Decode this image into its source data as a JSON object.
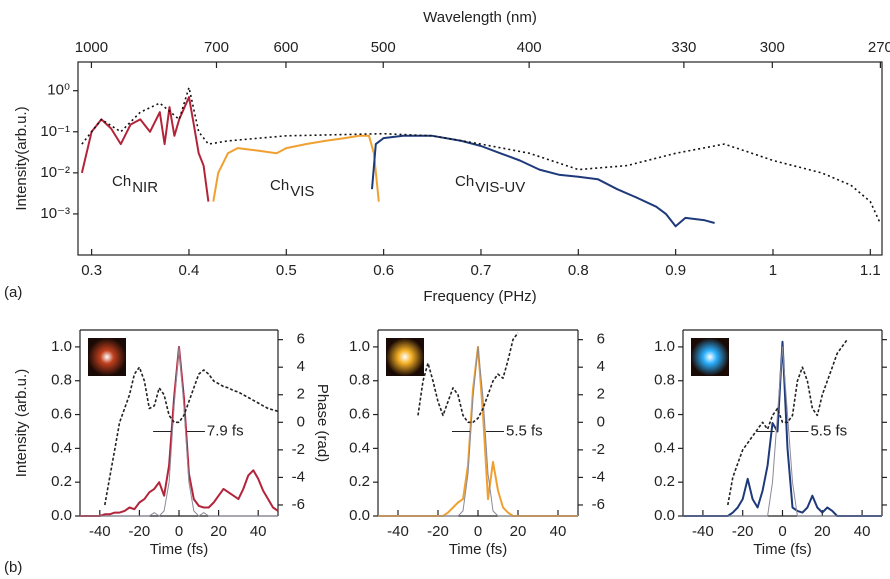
{
  "chart_data": [
    {
      "type": "line",
      "xlabel": "Frequency (PHz)",
      "ylabel": "Intensity(arb.u.)",
      "x2label": "Wavelength (nm)",
      "panel_label": "(a)",
      "log_y": true,
      "xlim": [
        0.286,
        1.112
      ],
      "xticks": [
        0.3,
        0.4,
        0.5,
        0.6,
        0.7,
        0.8,
        0.9,
        1,
        1.1
      ],
      "x2ticks": [
        1000,
        700,
        600,
        500,
        400,
        330,
        300,
        270
      ],
      "ylim": [
        0.0001,
        5
      ],
      "yticks": [
        {
          "value": 0.001,
          "label": "10⁻³"
        },
        {
          "value": 0.01,
          "label": "10⁻²"
        },
        {
          "value": 0.1,
          "label": "10⁻¹"
        },
        {
          "value": 1,
          "label": "10⁰"
        }
      ],
      "series": [
        {
          "name": "Ch",
          "name_sub": "NIR",
          "color": "#b3243a",
          "x": [
            0.29,
            0.3,
            0.31,
            0.32,
            0.33,
            0.34,
            0.35,
            0.36,
            0.37,
            0.375,
            0.38,
            0.385,
            0.39,
            0.4,
            0.405,
            0.41,
            0.415,
            0.42
          ],
          "values": [
            0.01,
            0.1,
            0.2,
            0.12,
            0.05,
            0.15,
            0.2,
            0.1,
            0.3,
            0.05,
            0.4,
            0.08,
            0.2,
            0.7,
            0.15,
            0.03,
            0.015,
            0.002
          ]
        },
        {
          "name": "Ch",
          "name_sub": "VIS",
          "color": "#f0a030",
          "x": [
            0.425,
            0.43,
            0.44,
            0.45,
            0.47,
            0.49,
            0.5,
            0.52,
            0.54,
            0.56,
            0.575,
            0.585,
            0.59,
            0.595
          ],
          "values": [
            0.002,
            0.01,
            0.03,
            0.04,
            0.035,
            0.03,
            0.04,
            0.05,
            0.06,
            0.07,
            0.08,
            0.08,
            0.03,
            0.002
          ]
        },
        {
          "name": "Ch",
          "name_sub": "VIS-UV",
          "color": "#1f3a7a",
          "x": [
            0.588,
            0.592,
            0.6,
            0.62,
            0.65,
            0.68,
            0.7,
            0.72,
            0.74,
            0.76,
            0.78,
            0.8,
            0.82,
            0.84,
            0.86,
            0.88,
            0.89,
            0.9,
            0.91,
            0.93,
            0.94
          ],
          "values": [
            0.004,
            0.05,
            0.07,
            0.08,
            0.08,
            0.06,
            0.045,
            0.03,
            0.02,
            0.012,
            0.009,
            0.008,
            0.007,
            0.004,
            0.0025,
            0.0015,
            0.001,
            0.0005,
            0.0008,
            0.0007,
            0.0006
          ]
        },
        {
          "color": "#111",
          "style": "dotted",
          "x": [
            0.29,
            0.31,
            0.33,
            0.35,
            0.37,
            0.39,
            0.4,
            0.41,
            0.42,
            0.44,
            0.5,
            0.6,
            0.65,
            0.7,
            0.75,
            0.8,
            0.85,
            0.9,
            0.95,
            0.97,
            1.0,
            1.05,
            1.08,
            1.1,
            1.11
          ],
          "values": [
            0.05,
            0.2,
            0.1,
            0.3,
            0.5,
            0.2,
            1.2,
            0.1,
            0.05,
            0.06,
            0.08,
            0.09,
            0.08,
            0.05,
            0.03,
            0.012,
            0.015,
            0.03,
            0.05,
            0.035,
            0.02,
            0.01,
            0.005,
            0.002,
            0.0006
          ]
        }
      ]
    },
    {
      "type": "line",
      "xlabel": "Time (fs)",
      "ylabel": "Intensity (arb.u.)",
      "y2label": "Phase (rad)",
      "panel_label": "(b)",
      "annotation": "7.9 fs",
      "inset_color": "#c0401e",
      "y2_color": "#2e9a1e",
      "xlim": [
        -50,
        50
      ],
      "xticks": [
        -40,
        -20,
        0,
        20,
        40
      ],
      "ylim": [
        0,
        1.1
      ],
      "yticks": [
        {
          "value": 0,
          "label": "0.0"
        },
        0.2,
        0.4,
        0.6,
        0.8,
        {
          "value": 1,
          "label": "1.0"
        }
      ],
      "y2lim": [
        -6.8,
        6.7
      ],
      "y2ticks": [
        -6,
        -4,
        -2,
        0,
        2,
        4,
        6
      ],
      "x": [
        -50,
        -47.5,
        -45,
        -42.5,
        -40,
        -37.5,
        -35,
        -32.5,
        -30,
        -27.5,
        -25,
        -22.5,
        -20,
        -17.5,
        -15,
        -12.5,
        -10,
        -7.5,
        -5,
        -2.5,
        0,
        2.5,
        5,
        7.5,
        10,
        12.5,
        15,
        17.5,
        20,
        22.5,
        25,
        27.5,
        30,
        32.5,
        35,
        37.5,
        40,
        42.5,
        45,
        47.5,
        50
      ],
      "series": [
        {
          "color": "#b3243a",
          "values": [
            0,
            0,
            0,
            0,
            0,
            0.01,
            0.01,
            0.02,
            0.02,
            0.03,
            0.05,
            0.04,
            0.08,
            0.1,
            0.14,
            0.16,
            0.2,
            0.12,
            0.3,
            0.7,
            1.0,
            0.7,
            0.25,
            0.1,
            0.06,
            0.05,
            0.05,
            0.08,
            0.12,
            0.16,
            0.14,
            0.12,
            0.1,
            0.16,
            0.24,
            0.27,
            0.22,
            0.15,
            0.1,
            0.05,
            0.03
          ]
        },
        {
          "color": "#8a8a9a",
          "values": [
            0,
            0,
            0,
            0,
            0,
            0,
            0,
            0,
            0,
            0,
            0,
            0,
            0,
            0,
            0,
            0.02,
            0,
            0.03,
            0.2,
            0.65,
            1.0,
            0.65,
            0.2,
            0.03,
            0,
            0.02,
            0,
            0,
            0,
            0,
            0,
            0,
            0,
            0,
            0,
            0,
            0,
            0,
            0,
            0,
            0
          ]
        },
        {
          "color": "#222",
          "style": "dashed",
          "axis": "y2",
          "values": [
            null,
            null,
            null,
            null,
            null,
            -6,
            -4,
            -2,
            0,
            1,
            2,
            3.5,
            4,
            3,
            1,
            1.2,
            2.5,
            2,
            0.5,
            0,
            0,
            0.5,
            1.5,
            2.5,
            3.5,
            3.8,
            3.5,
            3,
            2.8,
            2.6,
            2.5,
            2.3,
            2.2,
            2,
            1.8,
            1.6,
            1.4,
            1.2,
            1,
            0.9,
            0.8
          ]
        }
      ]
    },
    {
      "type": "line",
      "xlabel": "Time (fs)",
      "annotation": "5.5 fs",
      "inset_color": "#f5b025",
      "y2_color": "#2e9a1e",
      "xlim": [
        -50,
        50
      ],
      "xticks": [
        -40,
        -20,
        0,
        20,
        40
      ],
      "ylim": [
        0,
        1.1
      ],
      "yticks": [
        {
          "value": 0,
          "label": "0.0"
        },
        0.2,
        0.4,
        0.6,
        0.8,
        {
          "value": 1,
          "label": "1.0"
        }
      ],
      "y2lim": [
        -6.8,
        6.7
      ],
      "y2ticks": [
        -6,
        -4,
        -2,
        0,
        2,
        4,
        6
      ],
      "x": [
        -50,
        -47.5,
        -45,
        -42.5,
        -40,
        -37.5,
        -35,
        -32.5,
        -30,
        -27.5,
        -25,
        -22.5,
        -20,
        -17.5,
        -15,
        -12.5,
        -10,
        -7.5,
        -5,
        -2.5,
        0,
        2.5,
        5,
        7.5,
        10,
        12.5,
        15,
        17.5,
        20,
        22.5,
        25,
        27.5,
        30,
        32.5,
        35,
        37.5,
        40,
        42.5,
        45,
        47.5,
        50
      ],
      "series": [
        {
          "color": "#f0a030",
          "values": [
            0,
            0,
            0,
            0,
            0,
            0,
            0,
            0,
            0,
            0,
            0,
            0,
            0,
            0,
            0.02,
            0.05,
            0.08,
            0.1,
            0.3,
            0.75,
            1.0,
            0.6,
            0.1,
            0.32,
            0.15,
            0.05,
            0.02,
            0,
            0,
            0,
            0,
            0,
            0,
            0,
            0,
            0,
            0,
            0,
            0,
            0,
            0
          ]
        },
        {
          "color": "#8a8a9a",
          "values": [
            0,
            0,
            0,
            0,
            0,
            0,
            0,
            0,
            0,
            0,
            0,
            0,
            0,
            0,
            0,
            0,
            0,
            0.03,
            0.25,
            0.7,
            1.0,
            0.7,
            0.25,
            0.03,
            0,
            0,
            0,
            0,
            0,
            0,
            0,
            0,
            0,
            0,
            0,
            0,
            0,
            0,
            0,
            0,
            0
          ]
        },
        {
          "color": "#222",
          "style": "dashed",
          "axis": "y2",
          "values": [
            null,
            null,
            null,
            null,
            null,
            null,
            null,
            null,
            0.5,
            3,
            4.3,
            3,
            1.5,
            0.5,
            1.5,
            2.5,
            2,
            0.5,
            0,
            0,
            0.3,
            1,
            2,
            3,
            3.5,
            3.2,
            4.5,
            6,
            6.5,
            null,
            null,
            null,
            null,
            null,
            null,
            null,
            null,
            null,
            null,
            null,
            null
          ]
        }
      ]
    },
    {
      "type": "line",
      "xlabel": "Time (fs)",
      "annotation": "5.5 fs",
      "inset_color": "#2ab0ff",
      "y2_color": "#2e9a1e",
      "y2_tick_labels": false,
      "xlim": [
        -50,
        50
      ],
      "xticks": [
        -40,
        -20,
        0,
        20,
        40
      ],
      "ylim": [
        0,
        1.1
      ],
      "yticks": [
        {
          "value": 0,
          "label": "0.0"
        },
        0.2,
        0.4,
        0.6,
        0.8,
        {
          "value": 1,
          "label": "1.0"
        }
      ],
      "y2lim": [
        -6.8,
        6.7
      ],
      "y2ticks": [
        -6,
        -4,
        -2,
        0,
        2,
        4,
        6
      ],
      "x": [
        -50,
        -47.5,
        -45,
        -42.5,
        -40,
        -37.5,
        -35,
        -32.5,
        -30,
        -27.5,
        -25,
        -22.5,
        -20,
        -17.5,
        -15,
        -12.5,
        -10,
        -7.5,
        -5,
        -2.5,
        0,
        2.5,
        5,
        7.5,
        10,
        12.5,
        15,
        17.5,
        20,
        22.5,
        25,
        27.5,
        30,
        32.5,
        35,
        37.5,
        40,
        42.5,
        45,
        47.5,
        50
      ],
      "series": [
        {
          "color": "#1f3a7a",
          "values": [
            0,
            0,
            0,
            0,
            0,
            0,
            0,
            0,
            0,
            0,
            0.02,
            0.05,
            0.1,
            0.22,
            0.1,
            0.05,
            0.15,
            0.3,
            0.55,
            0.5,
            1.03,
            0.4,
            0.05,
            0.03,
            0.02,
            0.05,
            0.12,
            0.05,
            0.02,
            0.05,
            0.03,
            0,
            0,
            0,
            0,
            0,
            0,
            0,
            0,
            0,
            0
          ]
        },
        {
          "color": "#8a8a9a",
          "values": [
            0,
            0,
            0,
            0,
            0,
            0,
            0,
            0,
            0,
            0,
            0,
            0,
            0,
            0,
            0,
            0,
            0,
            0,
            0.2,
            0.6,
            1.0,
            0.6,
            0.2,
            0,
            0,
            0,
            0,
            0,
            0,
            0,
            0,
            0,
            0,
            0,
            0,
            0,
            0,
            0,
            0,
            0,
            0
          ]
        },
        {
          "color": "#222",
          "style": "dashed",
          "axis": "y2",
          "values": [
            null,
            null,
            null,
            null,
            null,
            null,
            null,
            null,
            null,
            -6,
            -4,
            -3,
            -2,
            -1.5,
            -1,
            -0.5,
            0,
            -0.5,
            0.5,
            1,
            0,
            0,
            0.5,
            3,
            4,
            3,
            1,
            0.5,
            2,
            3,
            4,
            5,
            5.5,
            6,
            null,
            null,
            null,
            null,
            null,
            null,
            null
          ]
        }
      ]
    }
  ]
}
